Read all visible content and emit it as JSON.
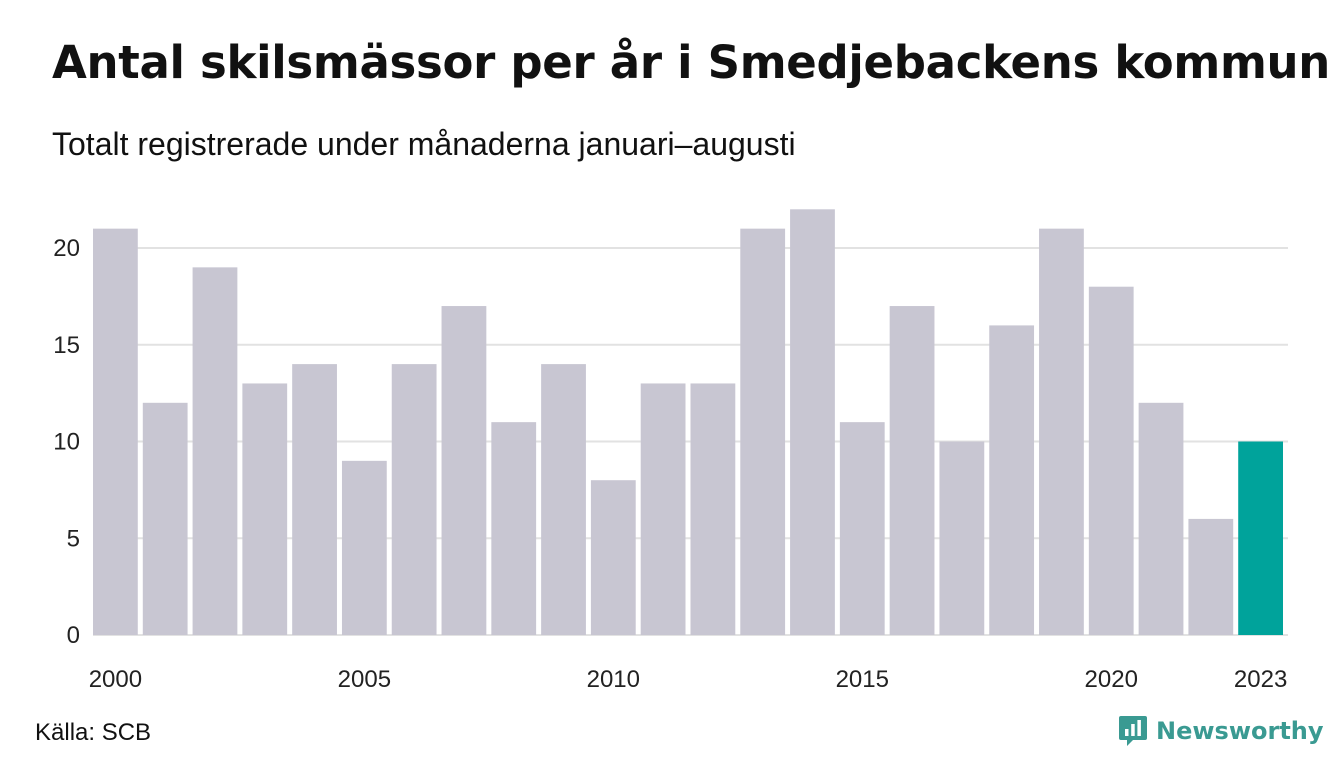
{
  "header": {
    "title": "Antal skilsmässor per år i Smedjebackens kommun",
    "subtitle": "Totalt registrerade under månaderna januari–augusti"
  },
  "footer": {
    "source": "Källa: SCB",
    "brand": "Newsworthy",
    "brand_icon": "newsworthy-logo-icon"
  },
  "colors": {
    "bar": "#c8c6d2",
    "highlight": "#00a39b",
    "grid": "#e2e2e2",
    "brand": "#3a9a92"
  },
  "chart_data": {
    "type": "bar",
    "title": "Antal skilsmässor per år i Smedjebackens kommun",
    "subtitle": "Totalt registrerade under månaderna januari–augusti",
    "categories": [
      2000,
      2001,
      2002,
      2003,
      2004,
      2005,
      2006,
      2007,
      2008,
      2009,
      2010,
      2011,
      2012,
      2013,
      2014,
      2015,
      2016,
      2017,
      2018,
      2019,
      2020,
      2021,
      2022,
      2023
    ],
    "values": [
      21,
      12,
      19,
      13,
      14,
      9,
      14,
      17,
      11,
      14,
      8,
      13,
      13,
      21,
      22,
      11,
      17,
      10,
      16,
      21,
      18,
      12,
      6,
      10
    ],
    "highlight_category": 2023,
    "ylim": [
      0,
      22
    ],
    "y_ticks": [
      0,
      5,
      10,
      15,
      20
    ],
    "x_tick_labels": [
      2000,
      2005,
      2010,
      2015,
      2020,
      2023
    ],
    "xlabel": "",
    "ylabel": "",
    "grid": true,
    "legend": "none"
  }
}
